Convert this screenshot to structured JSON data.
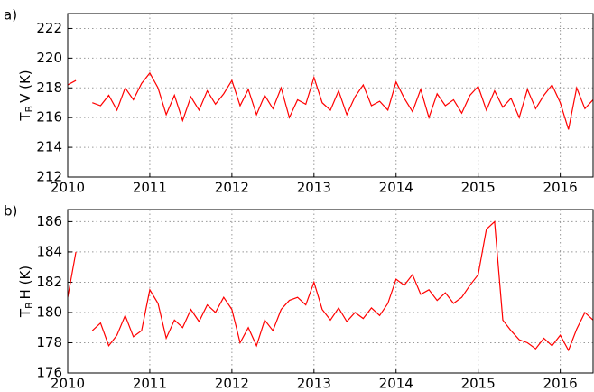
{
  "chart_data": [
    {
      "type": "line",
      "panel_label": "a)",
      "ylabel": {
        "base": "T",
        "sub": "B",
        "rest": "V (K)"
      },
      "xlim": [
        2010,
        2016.4
      ],
      "xticks": [
        2010,
        2011,
        2012,
        2013,
        2014,
        2015,
        2016
      ],
      "ylim": [
        212,
        223
      ],
      "yticks": [
        212,
        214,
        216,
        218,
        220,
        222
      ],
      "grid": true,
      "x": [
        2010.0,
        2010.1,
        2010.2,
        2010.3,
        2010.4,
        2010.5,
        2010.6,
        2010.7,
        2010.8,
        2010.9,
        2011.0,
        2011.1,
        2011.2,
        2011.3,
        2011.4,
        2011.5,
        2011.6,
        2011.7,
        2011.8,
        2011.9,
        2012.0,
        2012.1,
        2012.2,
        2012.3,
        2012.4,
        2012.5,
        2012.6,
        2012.7,
        2012.8,
        2012.9,
        2013.0,
        2013.1,
        2013.2,
        2013.3,
        2013.4,
        2013.5,
        2013.6,
        2013.7,
        2013.8,
        2013.9,
        2014.0,
        2014.1,
        2014.2,
        2014.3,
        2014.4,
        2014.5,
        2014.6,
        2014.7,
        2014.8,
        2014.9,
        2015.0,
        2015.1,
        2015.2,
        2015.3,
        2015.4,
        2015.5,
        2015.6,
        2015.7,
        2015.8,
        2015.9,
        2016.0,
        2016.1,
        2016.2,
        2016.3,
        2016.4
      ],
      "series": [
        {
          "color": "#ff0000",
          "values": [
            218.2,
            218.5,
            null,
            217.0,
            216.8,
            217.5,
            216.5,
            218.0,
            217.2,
            218.3,
            219.0,
            218.0,
            216.2,
            217.5,
            215.8,
            217.4,
            216.5,
            217.8,
            216.9,
            217.6,
            218.5,
            216.8,
            217.9,
            216.2,
            217.5,
            216.6,
            218.0,
            216.0,
            217.2,
            216.9,
            218.7,
            217.0,
            216.5,
            217.8,
            216.2,
            217.4,
            218.2,
            216.8,
            217.1,
            216.5,
            218.4,
            217.3,
            216.4,
            217.9,
            216.0,
            217.6,
            216.8,
            217.2,
            216.3,
            217.5,
            218.1,
            216.5,
            217.8,
            216.7,
            217.3,
            216.0,
            217.9,
            216.6,
            217.5,
            218.2,
            217.0,
            215.2,
            218.0,
            216.6,
            217.2
          ]
        }
      ]
    },
    {
      "type": "line",
      "panel_label": "b)",
      "ylabel": {
        "base": "T",
        "sub": "B",
        "rest": "H (K)"
      },
      "xlim": [
        2010,
        2016.4
      ],
      "xticks": [
        2010,
        2011,
        2012,
        2013,
        2014,
        2015,
        2016
      ],
      "ylim": [
        176,
        186.8
      ],
      "yticks": [
        176,
        178,
        180,
        182,
        184,
        186
      ],
      "grid": true,
      "x": [
        2010.0,
        2010.1,
        2010.2,
        2010.3,
        2010.4,
        2010.5,
        2010.6,
        2010.7,
        2010.8,
        2010.9,
        2011.0,
        2011.1,
        2011.2,
        2011.3,
        2011.4,
        2011.5,
        2011.6,
        2011.7,
        2011.8,
        2011.9,
        2012.0,
        2012.1,
        2012.2,
        2012.3,
        2012.4,
        2012.5,
        2012.6,
        2012.7,
        2012.8,
        2012.9,
        2013.0,
        2013.1,
        2013.2,
        2013.3,
        2013.4,
        2013.5,
        2013.6,
        2013.7,
        2013.8,
        2013.9,
        2014.0,
        2014.1,
        2014.2,
        2014.3,
        2014.4,
        2014.5,
        2014.6,
        2014.7,
        2014.8,
        2014.9,
        2015.0,
        2015.1,
        2015.2,
        2015.3,
        2015.4,
        2015.5,
        2015.6,
        2015.7,
        2015.8,
        2015.9,
        2016.0,
        2016.1,
        2016.2,
        2016.3,
        2016.4
      ],
      "series": [
        {
          "color": "#ff0000",
          "values": [
            181.0,
            184.0,
            null,
            178.8,
            179.3,
            177.8,
            178.5,
            179.8,
            178.4,
            178.8,
            181.5,
            180.6,
            178.3,
            179.5,
            179.0,
            180.2,
            179.4,
            180.5,
            180.0,
            181.0,
            180.2,
            178.0,
            179.0,
            177.8,
            179.5,
            178.8,
            180.2,
            180.8,
            181.0,
            180.5,
            182.0,
            180.2,
            179.5,
            180.3,
            179.4,
            180.0,
            179.6,
            180.3,
            179.8,
            180.6,
            182.2,
            181.8,
            182.5,
            181.2,
            181.5,
            180.8,
            181.3,
            180.6,
            181.0,
            181.8,
            182.5,
            185.5,
            186.0,
            179.5,
            178.8,
            178.2,
            178.0,
            177.6,
            178.3,
            177.8,
            178.5,
            177.5,
            178.9,
            180.0,
            179.5
          ]
        }
      ]
    }
  ]
}
